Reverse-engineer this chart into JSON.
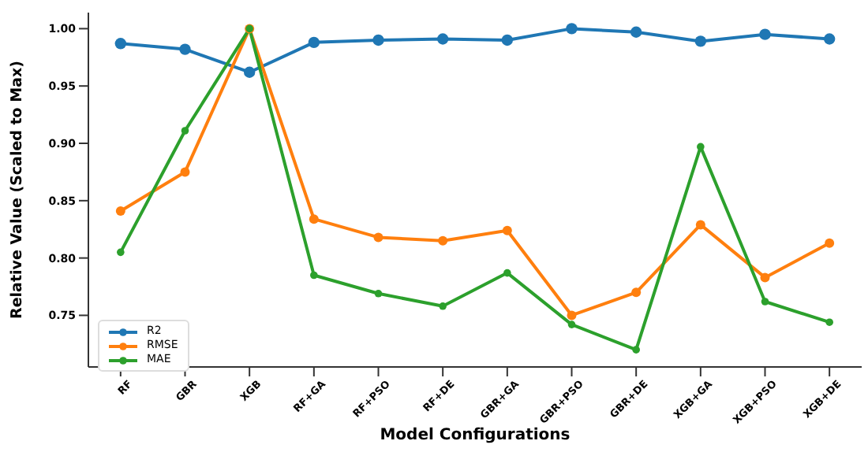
{
  "chart_data": {
    "type": "line",
    "xlabel": "Model Configurations",
    "ylabel": "Relative Value (Scaled to Max)",
    "categories": [
      "RF",
      "GBR",
      "XGB",
      "RF+GA",
      "RF+PSO",
      "RF+DE",
      "GBR+GA",
      "GBR+PSO",
      "GBR+DE",
      "XGB+GA",
      "XGB+PSO",
      "XGB+DE"
    ],
    "series": [
      {
        "name": "R2",
        "color": "#1f77b4",
        "values": [
          0.987,
          0.982,
          0.962,
          0.988,
          0.99,
          0.991,
          0.99,
          1.0,
          0.997,
          0.989,
          0.995,
          0.991
        ]
      },
      {
        "name": "RMSE",
        "color": "#ff7f0e",
        "values": [
          0.841,
          0.875,
          1.0,
          0.834,
          0.818,
          0.815,
          0.824,
          0.75,
          0.77,
          0.829,
          0.783,
          0.813
        ]
      },
      {
        "name": "MAE",
        "color": "#2ca02c",
        "values": [
          0.805,
          0.911,
          1.0,
          0.785,
          0.769,
          0.758,
          0.787,
          0.742,
          0.72,
          0.897,
          0.762,
          0.744
        ]
      }
    ],
    "ylim": [
      0.705,
      1.014
    ],
    "yticks": [
      {
        "value": 0.75,
        "label": "0.75"
      },
      {
        "value": 0.8,
        "label": "0.80"
      },
      {
        "value": 0.85,
        "label": "0.85"
      },
      {
        "value": 0.9,
        "label": "0.90"
      },
      {
        "value": 0.95,
        "label": "0.95"
      },
      {
        "value": 1.0,
        "label": "1.00"
      }
    ],
    "grid": false,
    "legend": "bottom left",
    "marker": "circle",
    "line_style": "solid"
  }
}
